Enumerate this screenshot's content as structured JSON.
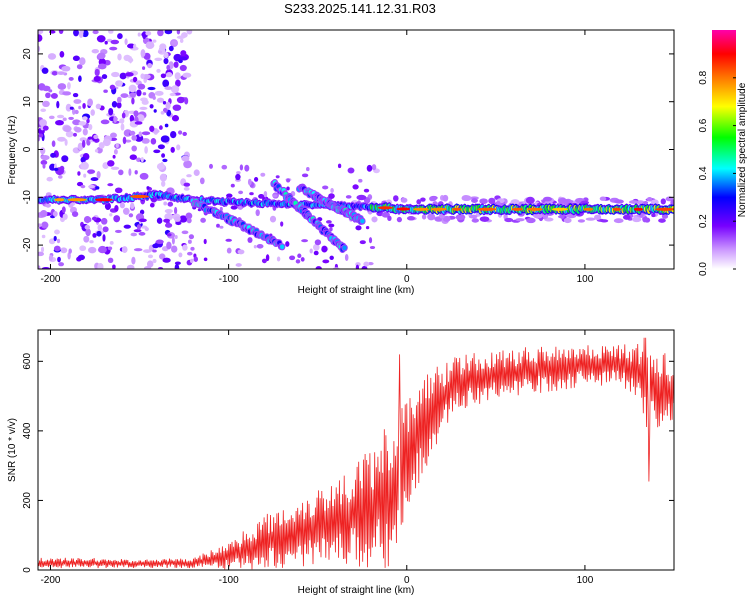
{
  "title": "S233.2025.141.12.31.R03",
  "colors": {
    "snr_line": "#ee2222",
    "background": "#ffffff",
    "axis": "#000000",
    "colormap": [
      "#ffffff",
      "#cc99ff",
      "#7700ff",
      "#0000ff",
      "#00ffff",
      "#00ff00",
      "#ffff00",
      "#ff7700",
      "#ff0000",
      "#ff00aa"
    ]
  },
  "chart_data": [
    {
      "type": "heatmap",
      "xlabel": "Height of straight line (km)",
      "ylabel": "Frequency (Hz)",
      "xlim": [
        -207,
        150
      ],
      "ylim": [
        -25,
        25
      ],
      "xticks": [
        -200,
        -100,
        0,
        100
      ],
      "yticks": [
        -20,
        -10,
        0,
        10,
        20
      ],
      "colorbar": {
        "label": "Normalized spectral amplitude",
        "range": [
          0,
          1
        ],
        "ticks": [
          0.0,
          0.2,
          0.4,
          0.6,
          0.8
        ]
      },
      "tone_track": [
        {
          "x": -205,
          "f": -10.5
        },
        {
          "x": -170,
          "f": -10.5
        },
        {
          "x": -140,
          "f": -9.5
        },
        {
          "x": -120,
          "f": -10.5
        },
        {
          "x": -100,
          "f": -11
        },
        {
          "x": -60,
          "f": -11.5
        },
        {
          "x": -20,
          "f": -12
        },
        {
          "x": 0,
          "f": -12.5
        },
        {
          "x": 50,
          "f": -12.5
        },
        {
          "x": 100,
          "f": -12.5
        },
        {
          "x": 150,
          "f": -12.5
        }
      ],
      "diagonal_tracks": [
        {
          "from": {
            "x": -120,
            "f": -11
          },
          "to": {
            "x": -70,
            "f": -20
          }
        },
        {
          "from": {
            "x": -75,
            "f": -7
          },
          "to": {
            "x": -35,
            "f": -21
          }
        },
        {
          "from": {
            "x": -60,
            "f": -8
          },
          "to": {
            "x": -25,
            "f": -15
          }
        }
      ],
      "grid": false,
      "legend": "none"
    },
    {
      "type": "line",
      "xlabel": "Height of straight line (km)",
      "ylabel": "SNR (10 * v/v)",
      "xlim": [
        -207,
        150
      ],
      "ylim": [
        0,
        690
      ],
      "xticks": [
        -200,
        -100,
        0,
        100
      ],
      "yticks": [
        0,
        200,
        400,
        600
      ],
      "series": [
        {
          "x": [
            -207,
            -180,
            -150,
            -120,
            -100,
            -80,
            -60,
            -40,
            -30,
            -20,
            -10,
            0,
            10,
            20,
            30,
            50,
            80,
            100,
            120,
            130,
            135,
            140,
            150
          ],
          "mean": [
            20,
            20,
            18,
            20,
            40,
            80,
            110,
            140,
            160,
            180,
            220,
            320,
            420,
            500,
            540,
            560,
            580,
            590,
            590,
            570,
            540,
            520,
            500
          ],
          "spread": [
            15,
            15,
            12,
            15,
            40,
            80,
            100,
            130,
            150,
            180,
            220,
            200,
            150,
            100,
            80,
            70,
            70,
            60,
            60,
            80,
            150,
            150,
            80
          ]
        }
      ],
      "grid": false,
      "legend": "none"
    }
  ]
}
